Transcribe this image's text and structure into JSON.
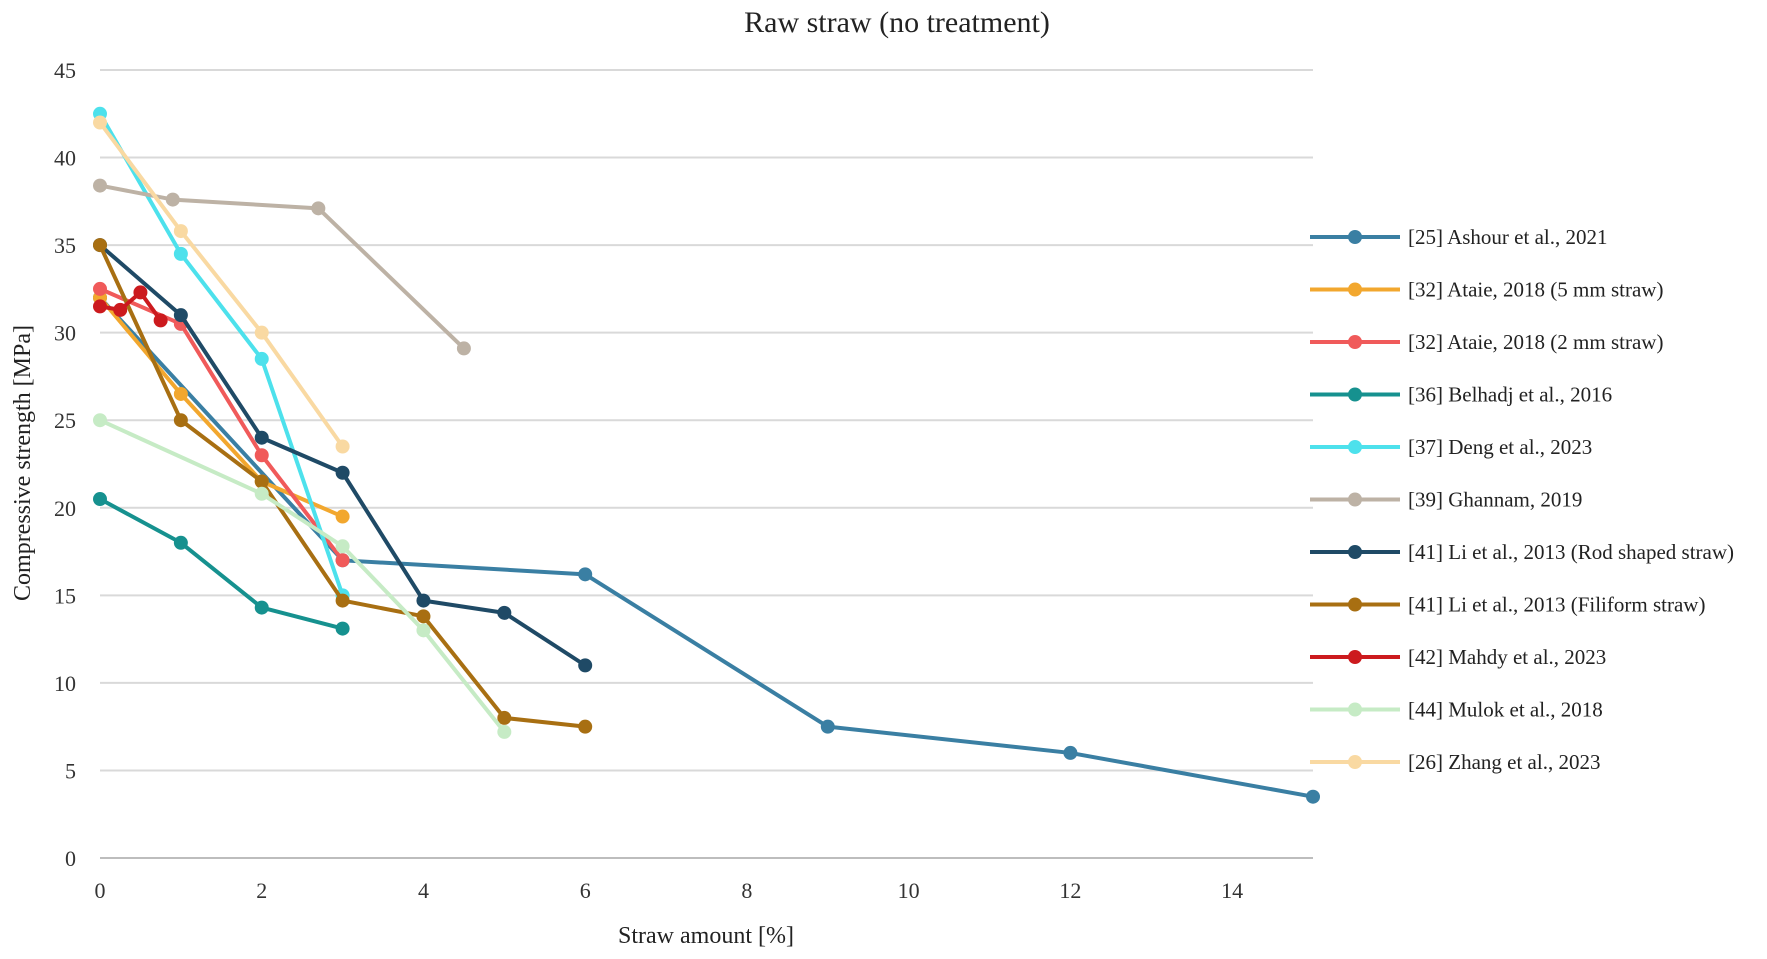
{
  "chart_data": {
    "type": "line",
    "title": "Raw straw (no treatment)",
    "xlabel": "Straw amount [%]",
    "ylabel": "Compressive strength [MPa]",
    "xlim": [
      0,
      15
    ],
    "ylim": [
      0,
      45
    ],
    "xticks": [
      0,
      2,
      4,
      6,
      8,
      10,
      12,
      14
    ],
    "yticks": [
      0,
      5,
      10,
      15,
      20,
      25,
      30,
      35,
      40,
      45
    ],
    "grid": "horizontal",
    "legend_position": "right",
    "series": [
      {
        "name": "[25] Ashour et al., 2021",
        "color": "#3a7fa3",
        "x": [
          0,
          3,
          6,
          9,
          12,
          15
        ],
        "y": [
          32,
          17,
          16.2,
          7.5,
          6,
          3.5
        ]
      },
      {
        "name": "[32] Ataie, 2018 (5 mm straw)",
        "color": "#f2a72e",
        "x": [
          0,
          1,
          2,
          3
        ],
        "y": [
          32,
          26.5,
          21.5,
          19.5
        ]
      },
      {
        "name": "[32] Ataie, 2018 (2 mm straw)",
        "color": "#f05a5a",
        "x": [
          0,
          1,
          2,
          3
        ],
        "y": [
          32.5,
          30.5,
          23,
          17
        ]
      },
      {
        "name": "[36] Belhadj et al., 2016",
        "color": "#16918f",
        "x": [
          0,
          1,
          2,
          3
        ],
        "y": [
          20.5,
          18,
          14.3,
          13.1
        ]
      },
      {
        "name": "[37] Deng et al., 2023",
        "color": "#4de1ec",
        "x": [
          0,
          1,
          2,
          3
        ],
        "y": [
          42.5,
          34.5,
          28.5,
          15
        ]
      },
      {
        "name": "[39] Ghannam, 2019",
        "color": "#bdb2a5",
        "x": [
          0,
          0.9,
          2.7,
          4.5
        ],
        "y": [
          38.4,
          37.6,
          37.1,
          29.1
        ]
      },
      {
        "name": "[41] Li et al., 2013 (Rod shaped straw)",
        "color": "#1f4a66",
        "x": [
          0,
          1,
          2,
          3,
          4,
          5,
          6
        ],
        "y": [
          35,
          31,
          24,
          22,
          14.7,
          14,
          11
        ]
      },
      {
        "name": "[41] Li et al., 2013 (Filiform straw)",
        "color": "#a86f12",
        "x": [
          0,
          1,
          2,
          3,
          4,
          5,
          6
        ],
        "y": [
          35,
          25,
          21.5,
          14.7,
          13.8,
          8,
          7.5
        ]
      },
      {
        "name": "[42] Mahdy et al., 2023",
        "color": "#cc1a1e",
        "x": [
          0,
          0.25,
          0.5,
          0.75
        ],
        "y": [
          31.5,
          31.3,
          32.3,
          30.7
        ]
      },
      {
        "name": "[44] Mulok et al., 2018",
        "color": "#c6ebc5",
        "x": [
          0,
          2,
          3,
          4,
          5
        ],
        "y": [
          25,
          20.8,
          17.8,
          13,
          7.2
        ]
      },
      {
        "name": "[26] Zhang et al., 2023",
        "color": "#f9d9a2",
        "x": [
          0,
          1,
          2,
          3
        ],
        "y": [
          42,
          35.8,
          30,
          23.5
        ]
      }
    ]
  }
}
